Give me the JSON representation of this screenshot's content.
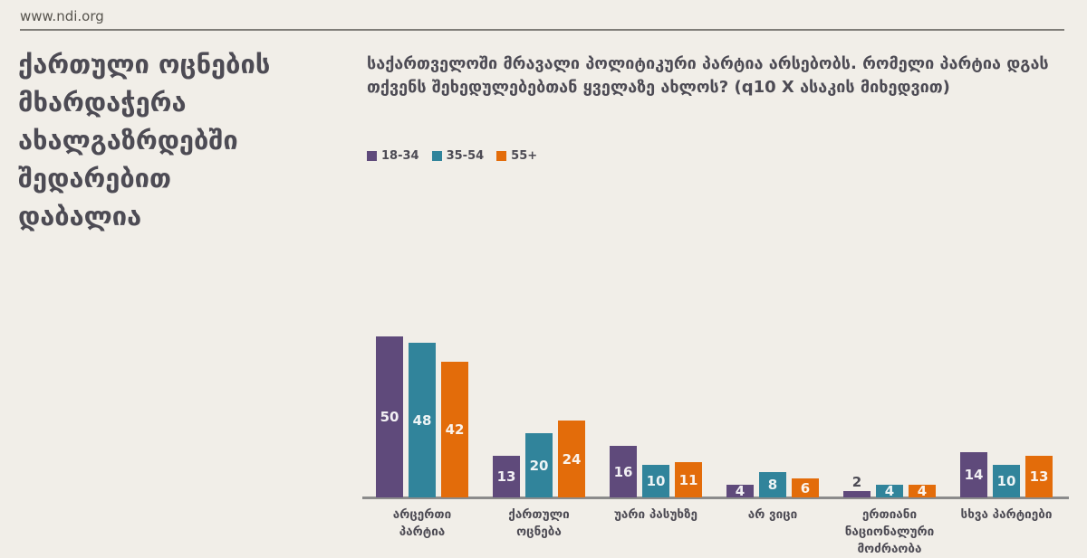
{
  "page": {
    "background_color": "#f1eee8"
  },
  "header": {
    "site_url": "www.ndi.org"
  },
  "slide": {
    "title": "ქართული ოცნების\nმხარდაჭერა\nახალგაზრდებში\nშედარებით\nდაბალია",
    "question": "საქართველოში მრავალი პოლიტიკური პარტია არსებობს. რომელი პარტია დგას თქვენს შეხედულებებთან ყველაზე ახლოს? (q10 X ასაკის მიხედვით)"
  },
  "colors": {
    "age_18_34": "#5f4a7b",
    "age_35_54": "#31849b",
    "age_55_plus": "#e36c0a",
    "text": "#4d4b54",
    "axis": "#8b8b8b"
  },
  "chart_data": {
    "type": "bar",
    "title": "ქართული ოცნების მხარდაჭერა ახალგაზრდებში შედარებით დაბალია",
    "subtitle": "საქართველოში მრავალი პოლიტიკური პარტია არსებობს. რომელი პარტია დგას თქვენს შეხედულებებთან ყველაზე ახლოს? (q10 X ასაკის მიხედვით)",
    "categories": [
      "არცერთი\nპარტია",
      "ქართული\nოცნება",
      "უარი პასუხზე",
      "არ ვიცი",
      "ერთიანი\nნაციონალური\nმოძრაობა",
      "სხვა პარტიები"
    ],
    "series": [
      {
        "name": "18-34",
        "color": "#5f4a7b",
        "values": [
          50,
          13,
          16,
          4,
          2,
          14
        ]
      },
      {
        "name": "35-54",
        "color": "#31849b",
        "values": [
          48,
          20,
          10,
          8,
          4,
          10
        ]
      },
      {
        "name": "55+",
        "color": "#e36c0a",
        "values": [
          42,
          24,
          11,
          6,
          4,
          13
        ]
      }
    ],
    "value_labels_shown": true,
    "legend_position": "top-left",
    "gridlines": false,
    "y_axis_shown": false,
    "ylim": [
      0,
      55
    ]
  }
}
